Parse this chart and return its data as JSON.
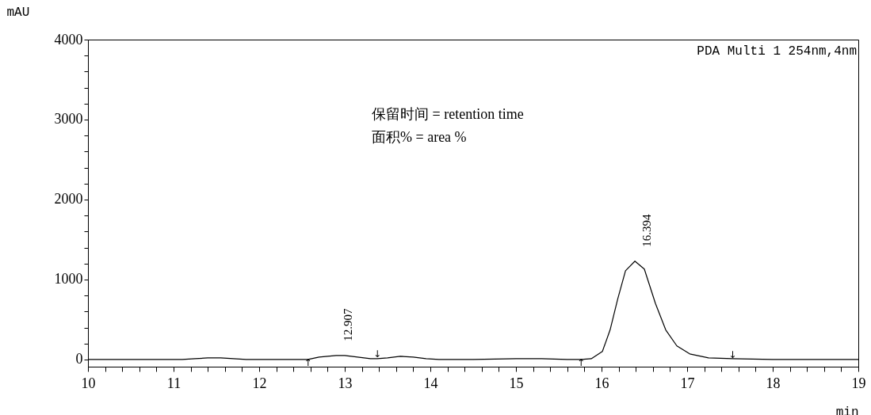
{
  "chart_data": {
    "type": "line",
    "xlabel": "min",
    "ylabel": "mAU",
    "xlim": [
      10,
      19
    ],
    "ylim": [
      -90,
      4000
    ],
    "xticks": [
      10,
      {
        "value": 10.2,
        "label": null
      },
      {
        "value": 10.4,
        "label": null
      },
      {
        "value": 10.6,
        "label": null
      },
      {
        "value": 10.8,
        "label": null
      },
      11,
      {
        "value": 11.2,
        "label": null
      },
      {
        "value": 11.4,
        "label": null
      },
      {
        "value": 11.6,
        "label": null
      },
      {
        "value": 11.8,
        "label": null
      },
      12,
      {
        "value": 12.2,
        "label": null
      },
      {
        "value": 12.4,
        "label": null
      },
      {
        "value": 12.6,
        "label": null
      },
      {
        "value": 12.8,
        "label": null
      },
      13,
      {
        "value": 13.2,
        "label": null
      },
      {
        "value": 13.4,
        "label": null
      },
      {
        "value": 13.6,
        "label": null
      },
      {
        "value": 13.8,
        "label": null
      },
      14,
      {
        "value": 14.2,
        "label": null
      },
      {
        "value": 14.4,
        "label": null
      },
      {
        "value": 14.6,
        "label": null
      },
      {
        "value": 14.8,
        "label": null
      },
      15,
      {
        "value": 15.2,
        "label": null
      },
      {
        "value": 15.4,
        "label": null
      },
      {
        "value": 15.6,
        "label": null
      },
      {
        "value": 15.8,
        "label": null
      },
      16,
      {
        "value": 16.2,
        "label": null
      },
      {
        "value": 16.4,
        "label": null
      },
      {
        "value": 16.6,
        "label": null
      },
      {
        "value": 16.8,
        "label": null
      },
      17,
      {
        "value": 17.2,
        "label": null
      },
      {
        "value": 17.4,
        "label": null
      },
      {
        "value": 17.6,
        "label": null
      },
      {
        "value": 17.8,
        "label": null
      },
      18,
      {
        "value": 18.2,
        "label": null
      },
      {
        "value": 18.4,
        "label": null
      },
      {
        "value": 18.6,
        "label": null
      },
      {
        "value": 18.8,
        "label": null
      },
      19
    ],
    "yticks": [
      0,
      {
        "value": 200,
        "label": null
      },
      {
        "value": 400,
        "label": null
      },
      {
        "value": 600,
        "label": null
      },
      {
        "value": 800,
        "label": null
      },
      1000,
      {
        "value": 1200,
        "label": null
      },
      {
        "value": 1400,
        "label": null
      },
      {
        "value": 1600,
        "label": null
      },
      {
        "value": 1800,
        "label": null
      },
      2000,
      {
        "value": 2200,
        "label": null
      },
      {
        "value": 2400,
        "label": null
      },
      {
        "value": 2600,
        "label": null
      },
      {
        "value": 2800,
        "label": null
      },
      3000,
      {
        "value": 3200,
        "label": null
      },
      {
        "value": 3400,
        "label": null
      },
      {
        "value": 3600,
        "label": null
      },
      {
        "value": 3800,
        "label": null
      },
      4000
    ],
    "grid": false,
    "marker": "none",
    "line_style": "solid",
    "x": [
      10,
      11.1,
      11.25,
      11.4,
      11.55,
      11.7,
      11.85,
      12.5,
      12.57,
      12.7,
      12.8,
      12.9,
      13.0,
      13.15,
      13.3,
      13.38,
      13.5,
      13.65,
      13.8,
      13.95,
      14.1,
      14.5,
      15.0,
      15.3,
      15.6,
      15.76,
      15.88,
      16.01,
      16.1,
      16.19,
      16.28,
      16.39,
      16.5,
      16.63,
      16.75,
      16.88,
      17.03,
      17.25,
      17.53,
      18,
      19
    ],
    "series": [
      {
        "color": "#000000",
        "values": [
          0,
          0,
          10,
          20,
          20,
          10,
          0,
          0,
          0,
          30,
          40,
          50,
          50,
          30,
          10,
          10,
          20,
          40,
          30,
          10,
          0,
          0,
          10,
          10,
          0,
          0,
          10,
          100,
          370,
          760,
          1110,
          1230,
          1130,
          700,
          370,
          170,
          70,
          20,
          10,
          0,
          0
        ]
      }
    ],
    "annotations": [
      "PDA Multi 1 254nm,4nm",
      "保留时间 = retention time",
      "面积% = area %",
      {
        "text": "12.907",
        "x": 12.907,
        "y": 50
      },
      {
        "text": "16.394",
        "x": 16.394,
        "y": 1230
      },
      {
        "text": "↑",
        "x": 12.57,
        "y": -45
      },
      {
        "text": "↓",
        "x": 13.38,
        "y": 65
      },
      {
        "text": "↑",
        "x": 15.76,
        "y": -45
      },
      {
        "text": "↓",
        "x": 17.53,
        "y": 60
      }
    ]
  }
}
